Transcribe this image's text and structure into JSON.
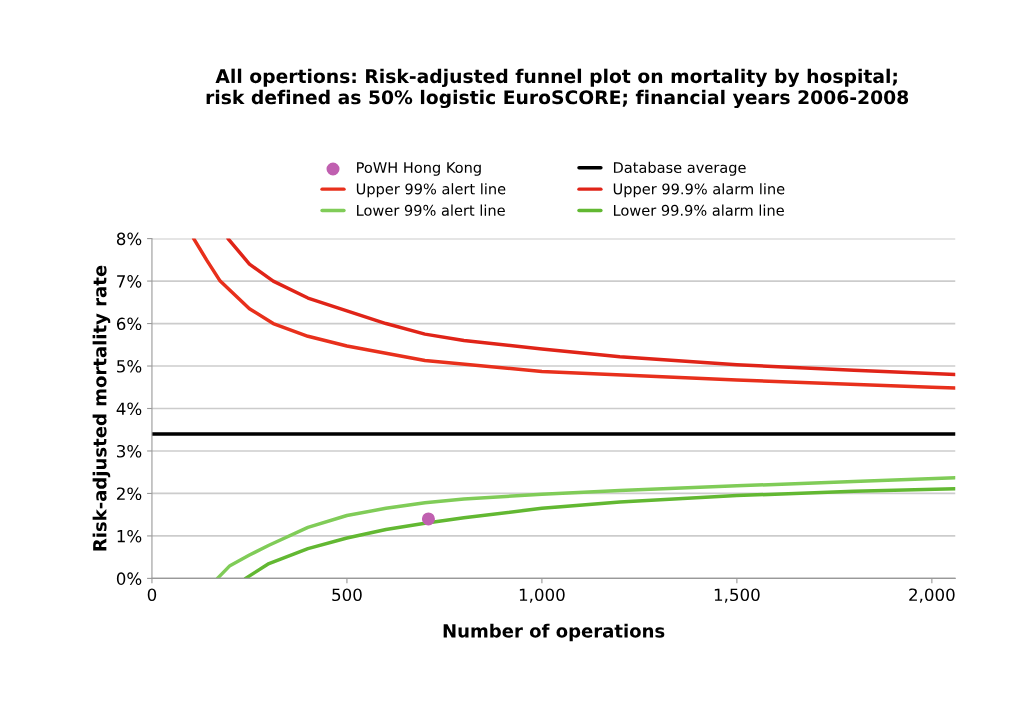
{
  "chart_data": {
    "type": "line",
    "title": "All opertions: Risk-adjusted funnel plot on mortality by hospital;\nrisk defined as 50% logistic EuroSCORE; financial years 2006-2008",
    "xlabel": "Number of operations",
    "ylabel": "Risk-adjusted mortality rate",
    "series": [
      {
        "name": "PoWH Hong Kong",
        "type": "scatter",
        "color": "#c060b0",
        "x": [
          709
        ],
        "values": [
          1.4
        ]
      },
      {
        "name": "Upper 99% alert line",
        "color": "#e8301c",
        "x": [
          107,
          140,
          175,
          250,
          311,
          400,
          500,
          700,
          1000,
          1500,
          2000,
          2060
        ],
        "values": [
          8.0,
          7.5,
          7.0,
          6.35,
          6.0,
          5.7,
          5.47,
          5.13,
          4.87,
          4.67,
          4.5,
          4.48
        ]
      },
      {
        "name": "Lower 99% alert line",
        "color": "#80cc58",
        "x": [
          168,
          200,
          250,
          300,
          400,
          500,
          600,
          700,
          800,
          1000,
          1200,
          1500,
          1800,
          2060
        ],
        "values": [
          0,
          0.3,
          0.55,
          0.78,
          1.2,
          1.48,
          1.65,
          1.78,
          1.87,
          1.98,
          2.07,
          2.18,
          2.28,
          2.37
        ]
      },
      {
        "name": "Database average",
        "color": "#000000",
        "x": [
          0,
          2060
        ],
        "values": [
          3.4,
          3.4
        ]
      },
      {
        "name": "Upper 99.9% alarm line",
        "color": "#e02418",
        "x": [
          195,
          250,
          311,
          400,
          500,
          600,
          700,
          800,
          1000,
          1200,
          1500,
          1800,
          2060
        ],
        "values": [
          8.0,
          7.4,
          7.0,
          6.6,
          6.3,
          6.0,
          5.75,
          5.6,
          5.4,
          5.22,
          5.03,
          4.9,
          4.8
        ]
      },
      {
        "name": "Lower 99.9% alarm line",
        "color": "#62b832",
        "x": [
          240,
          300,
          400,
          500,
          600,
          700,
          800,
          1000,
          1200,
          1500,
          1800,
          2060
        ],
        "values": [
          0,
          0.35,
          0.7,
          0.95,
          1.15,
          1.3,
          1.43,
          1.65,
          1.8,
          1.95,
          2.05,
          2.11
        ]
      }
    ],
    "xlim": [
      0,
      2060
    ],
    "xticks": [
      0,
      500,
      {
        "value": 1000,
        "label": "1,000"
      },
      {
        "value": 1500,
        "label": "1,500"
      },
      {
        "value": 2000,
        "label": "2,000"
      }
    ],
    "ylim": [
      0,
      8
    ],
    "yticks": [
      {
        "value": 0,
        "label": "0%"
      },
      {
        "value": 1,
        "label": "1%"
      },
      {
        "value": 2,
        "label": "2%"
      },
      {
        "value": 3,
        "label": "3%"
      },
      {
        "value": 4,
        "label": "4%"
      },
      {
        "value": 5,
        "label": "5%"
      },
      {
        "value": 6,
        "label": "6%"
      },
      {
        "value": 7,
        "label": "7%"
      },
      {
        "value": 8,
        "label": "8%"
      }
    ],
    "grid": "y",
    "legend": "top"
  }
}
